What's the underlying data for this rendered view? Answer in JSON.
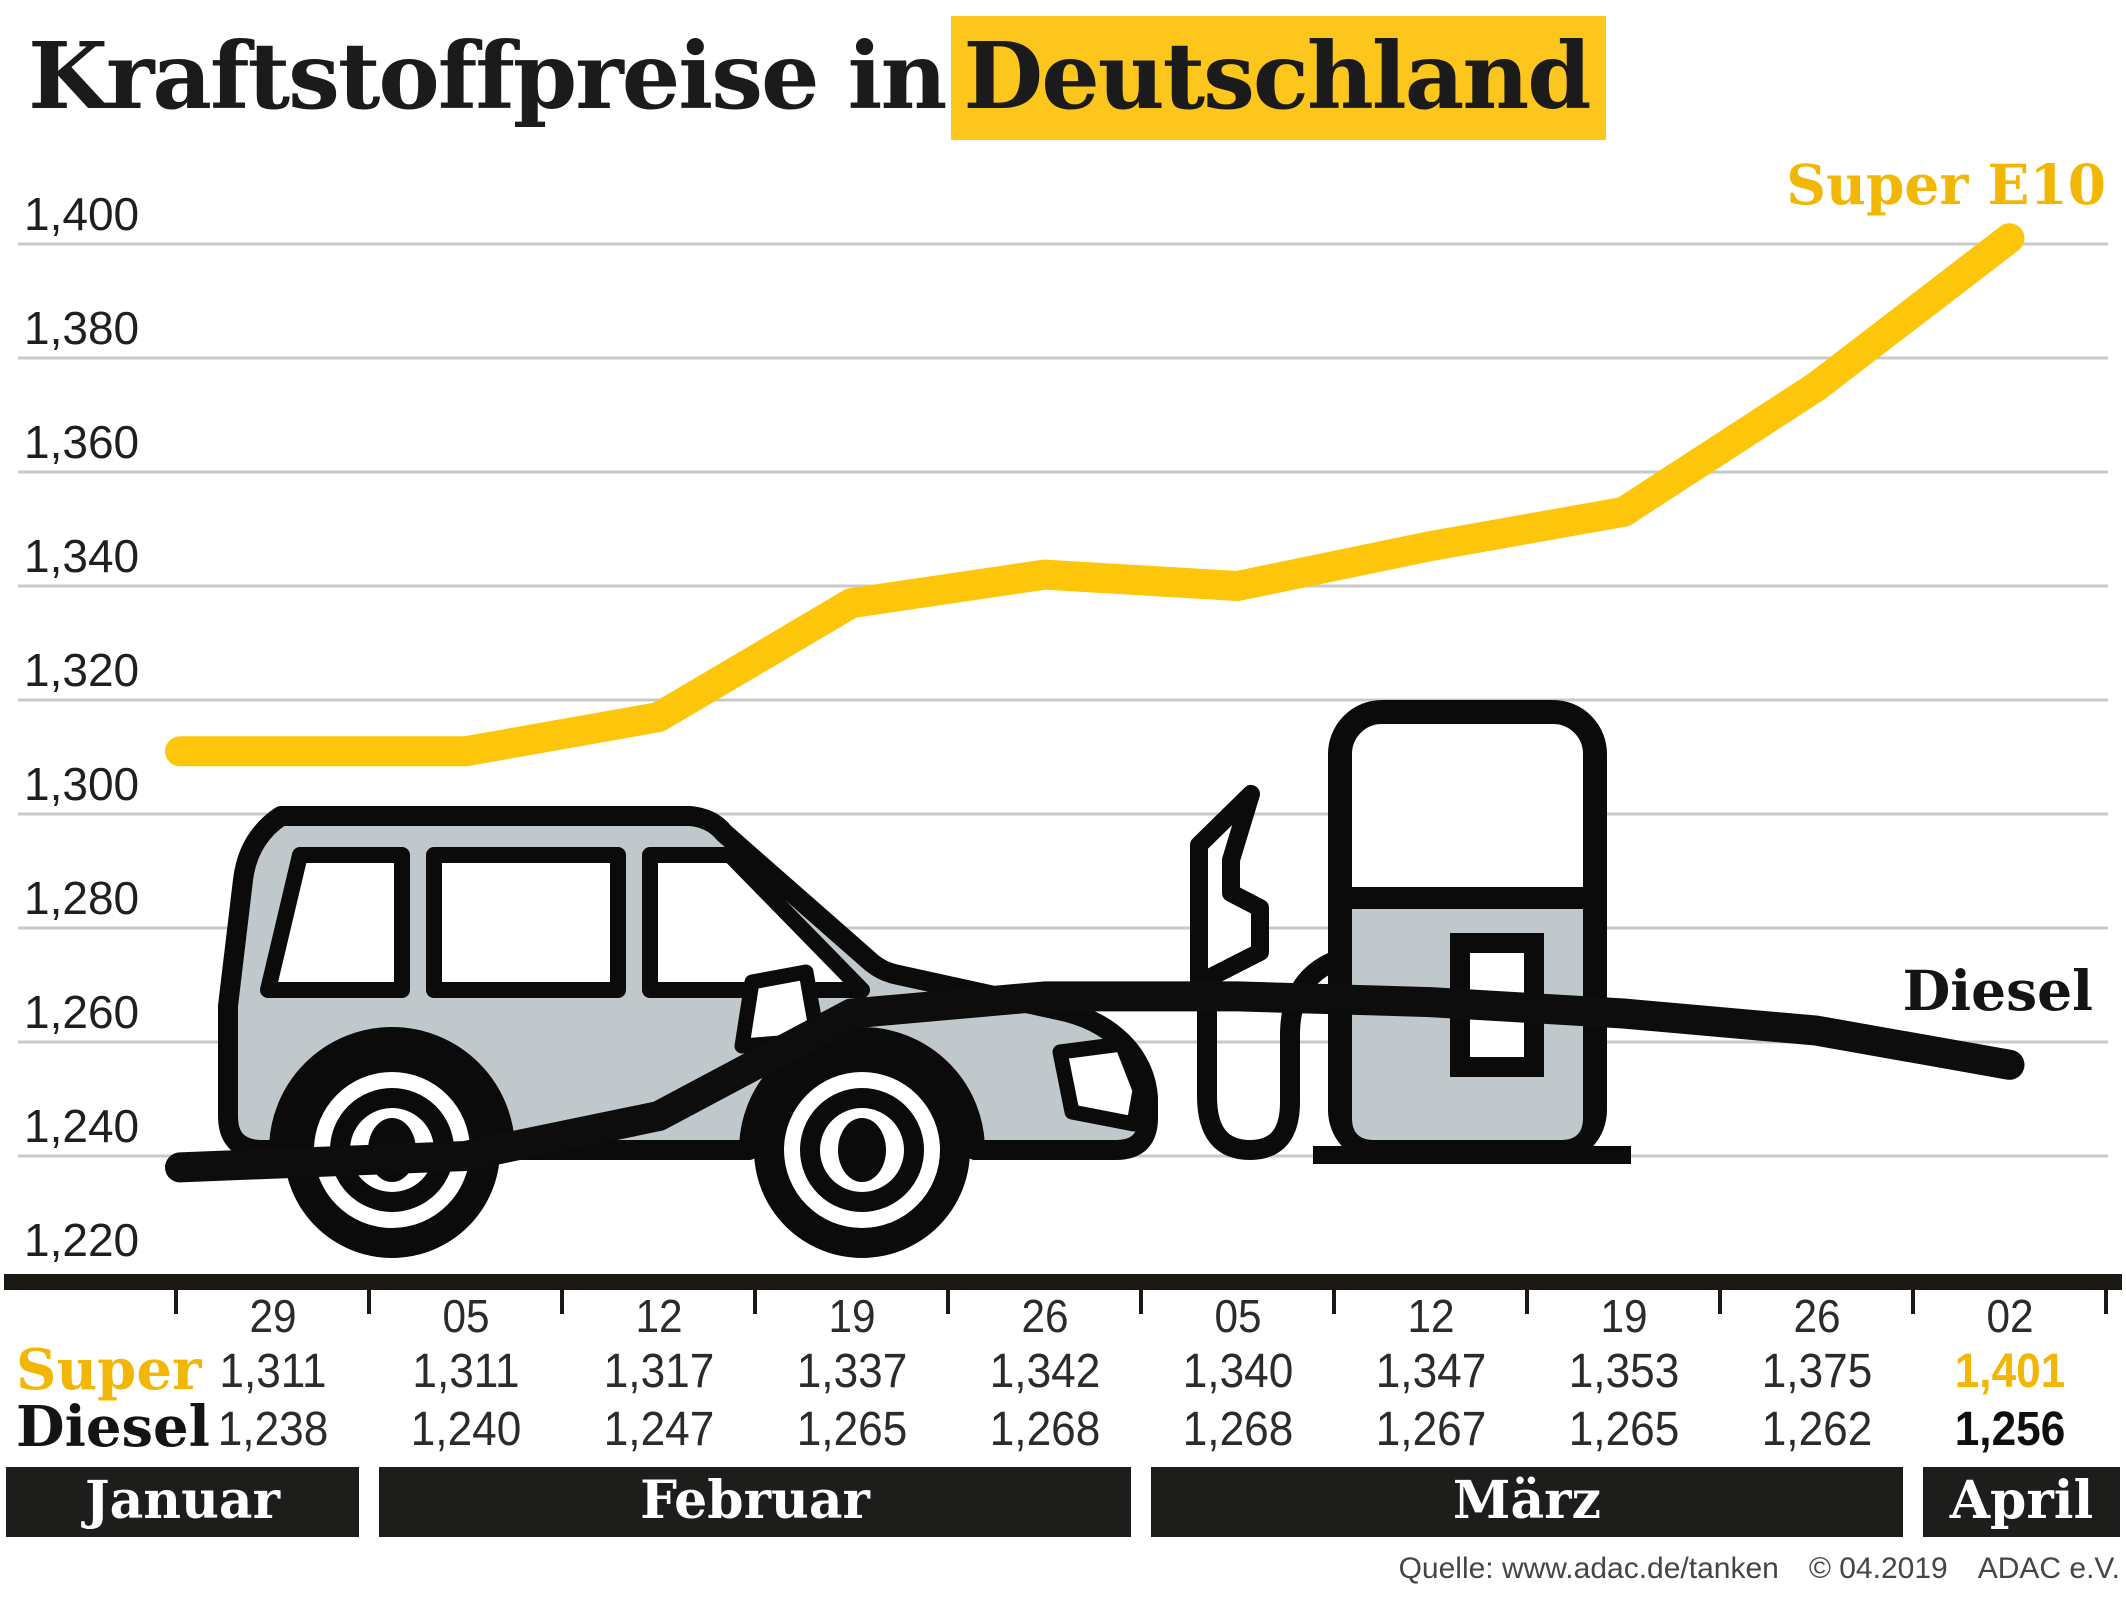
{
  "title": {
    "plain": "Kraftstoffpreise in",
    "highlight": "Deutschland"
  },
  "colors": {
    "accent_yellow": "#fdc60a",
    "accent_yellow_text": "#f2b705",
    "diesel_black": "#0d0d0d",
    "band_background": "#1d1d1b",
    "illustration_gray": "#c1c8cc",
    "gridline_gray": "#c9c9c9"
  },
  "chart_data": {
    "type": "line",
    "title": "Kraftstoffpreise in Deutschland",
    "ylim": [
      1.22,
      1.4
    ],
    "grid": true,
    "legend_position": "inline-end-of-line",
    "y_tick_labels": [
      "1,400",
      "1,380",
      "1,360",
      "1,340",
      "1,320",
      "1,300",
      "1,280",
      "1,260",
      "1,240",
      "1,220"
    ],
    "x": [
      "29",
      "05",
      "12",
      "19",
      "26",
      "05",
      "12",
      "19",
      "26",
      "02"
    ],
    "months": [
      {
        "label": "Januar",
        "cols": [
          0,
          0
        ]
      },
      {
        "label": "Februar",
        "cols": [
          1,
          4
        ]
      },
      {
        "label": "März",
        "cols": [
          5,
          8
        ]
      },
      {
        "label": "April",
        "cols": [
          9,
          9
        ]
      }
    ],
    "series": [
      {
        "name": "Super E10",
        "row_label": "Super",
        "color": "#fdc60a",
        "values": [
          1.311,
          1.311,
          1.317,
          1.337,
          1.342,
          1.34,
          1.347,
          1.353,
          1.375,
          1.401
        ],
        "display": [
          "1,311",
          "1,311",
          "1,317",
          "1,337",
          "1,342",
          "1,340",
          "1,347",
          "1,353",
          "1,375",
          "1,401"
        ]
      },
      {
        "name": "Diesel",
        "row_label": "Diesel",
        "color": "#0d0d0d",
        "values": [
          1.238,
          1.24,
          1.247,
          1.265,
          1.268,
          1.268,
          1.267,
          1.265,
          1.262,
          1.256
        ],
        "display": [
          "1,238",
          "1,240",
          "1,247",
          "1,265",
          "1,268",
          "1,268",
          "1,267",
          "1,265",
          "1,262",
          "1,256"
        ]
      }
    ]
  },
  "source": {
    "quelle": "Quelle: www.adac.de/tanken",
    "copyright": "© 04.2019",
    "org": "ADAC e.V."
  }
}
